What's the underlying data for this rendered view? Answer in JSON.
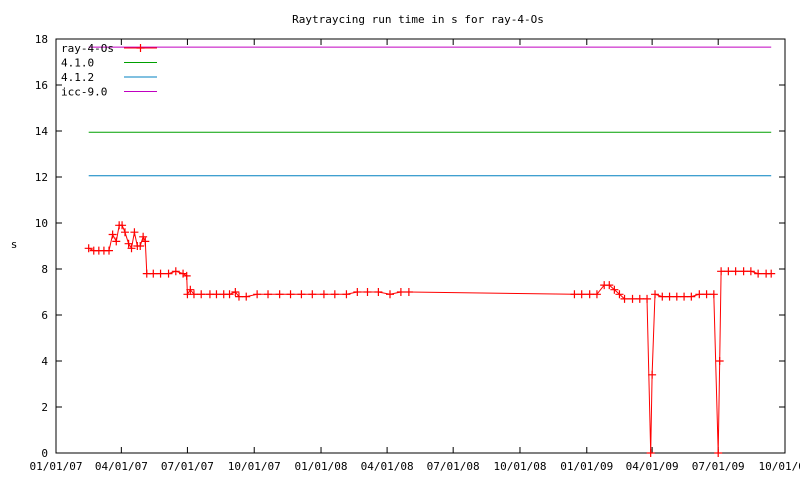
{
  "chart_data": {
    "type": "line",
    "title": "Raytraycing run time in s for ray-4-Os",
    "xlabel": "",
    "ylabel": "s",
    "ylim": [
      0,
      18
    ],
    "xlim": [
      "2007-01-01",
      "2009-10-01"
    ],
    "grid": false,
    "legend_position": "top-left",
    "x_ticks": [
      "01/01/07",
      "04/01/07",
      "07/01/07",
      "10/01/07",
      "01/01/08",
      "04/01/08",
      "07/01/08",
      "10/01/08",
      "01/01/09",
      "04/01/09",
      "07/01/09",
      "10/01/09"
    ],
    "y_ticks": [
      "0",
      "2",
      "4",
      "6",
      "8",
      "10",
      "12",
      "14",
      "16",
      "18"
    ],
    "series": [
      {
        "name": "ray-4-Os",
        "color": "#ff0000",
        "marker": "plus",
        "points": [
          [
            "2007-02-15",
            8.9
          ],
          [
            "2007-02-22",
            8.8
          ],
          [
            "2007-03-01",
            8.8
          ],
          [
            "2007-03-08",
            8.8
          ],
          [
            "2007-03-15",
            8.8
          ],
          [
            "2007-03-20",
            9.5
          ],
          [
            "2007-03-25",
            9.2
          ],
          [
            "2007-03-29",
            9.9
          ],
          [
            "2007-04-02",
            9.9
          ],
          [
            "2007-04-06",
            9.6
          ],
          [
            "2007-04-11",
            9.1
          ],
          [
            "2007-04-15",
            8.9
          ],
          [
            "2007-04-19",
            9.6
          ],
          [
            "2007-04-23",
            9.0
          ],
          [
            "2007-04-27",
            9.0
          ],
          [
            "2007-05-01",
            9.4
          ],
          [
            "2007-05-04",
            9.2
          ],
          [
            "2007-05-06",
            7.8
          ],
          [
            "2007-05-15",
            7.8
          ],
          [
            "2007-05-25",
            7.8
          ],
          [
            "2007-06-05",
            7.8
          ],
          [
            "2007-06-15",
            7.9
          ],
          [
            "2007-06-25",
            7.8
          ],
          [
            "2007-06-30",
            7.7
          ],
          [
            "2007-07-01",
            6.9
          ],
          [
            "2007-07-05",
            7.1
          ],
          [
            "2007-07-10",
            6.9
          ],
          [
            "2007-07-20",
            6.9
          ],
          [
            "2007-08-01",
            6.9
          ],
          [
            "2007-08-10",
            6.9
          ],
          [
            "2007-08-20",
            6.9
          ],
          [
            "2007-08-28",
            6.9
          ],
          [
            "2007-09-05",
            7.0
          ],
          [
            "2007-09-10",
            6.8
          ],
          [
            "2007-09-20",
            6.8
          ],
          [
            "2007-10-05",
            6.9
          ],
          [
            "2007-10-20",
            6.9
          ],
          [
            "2007-11-05",
            6.9
          ],
          [
            "2007-11-20",
            6.9
          ],
          [
            "2007-12-05",
            6.9
          ],
          [
            "2007-12-20",
            6.9
          ],
          [
            "2008-01-05",
            6.9
          ],
          [
            "2008-01-20",
            6.9
          ],
          [
            "2008-02-05",
            6.9
          ],
          [
            "2008-02-20",
            7.0
          ],
          [
            "2008-03-05",
            7.0
          ],
          [
            "2008-03-20",
            7.0
          ],
          [
            "2008-04-05",
            6.9
          ],
          [
            "2008-04-20",
            7.0
          ],
          [
            "2008-05-01",
            7.0
          ],
          [
            "2008-12-15",
            6.9
          ],
          [
            "2008-12-25",
            6.9
          ],
          [
            "2009-01-05",
            6.9
          ],
          [
            "2009-01-15",
            6.9
          ],
          [
            "2009-01-25",
            7.3
          ],
          [
            "2009-02-01",
            7.3
          ],
          [
            "2009-02-08",
            7.1
          ],
          [
            "2009-02-15",
            6.9
          ],
          [
            "2009-02-22",
            6.7
          ],
          [
            "2009-03-05",
            6.7
          ],
          [
            "2009-03-15",
            6.7
          ],
          [
            "2009-03-25",
            6.7
          ],
          [
            "2009-03-30",
            0.0
          ],
          [
            "2009-04-01",
            3.4
          ],
          [
            "2009-04-05",
            6.9
          ],
          [
            "2009-04-15",
            6.8
          ],
          [
            "2009-04-25",
            6.8
          ],
          [
            "2009-05-05",
            6.8
          ],
          [
            "2009-05-15",
            6.8
          ],
          [
            "2009-05-25",
            6.8
          ],
          [
            "2009-06-05",
            6.9
          ],
          [
            "2009-06-15",
            6.9
          ],
          [
            "2009-06-25",
            6.9
          ],
          [
            "2009-07-01",
            0.0
          ],
          [
            "2009-07-03",
            4.0
          ],
          [
            "2009-07-05",
            7.9
          ],
          [
            "2009-07-15",
            7.9
          ],
          [
            "2009-07-25",
            7.9
          ],
          [
            "2009-08-05",
            7.9
          ],
          [
            "2009-08-15",
            7.9
          ],
          [
            "2009-08-25",
            7.8
          ],
          [
            "2009-09-05",
            7.8
          ],
          [
            "2009-09-12",
            7.8
          ]
        ]
      },
      {
        "name": "4.1.0",
        "color": "#00a000",
        "points": [
          [
            "2007-02-15",
            13.95
          ],
          [
            "2009-09-12",
            13.95
          ]
        ]
      },
      {
        "name": "4.1.2",
        "color": "#0080c0",
        "points": [
          [
            "2007-02-15",
            12.05
          ],
          [
            "2009-09-12",
            12.05
          ]
        ]
      },
      {
        "name": "icc-9.0",
        "color": "#c000c0",
        "points": [
          [
            "2007-02-15",
            17.65
          ],
          [
            "2009-09-12",
            17.65
          ]
        ]
      }
    ]
  }
}
